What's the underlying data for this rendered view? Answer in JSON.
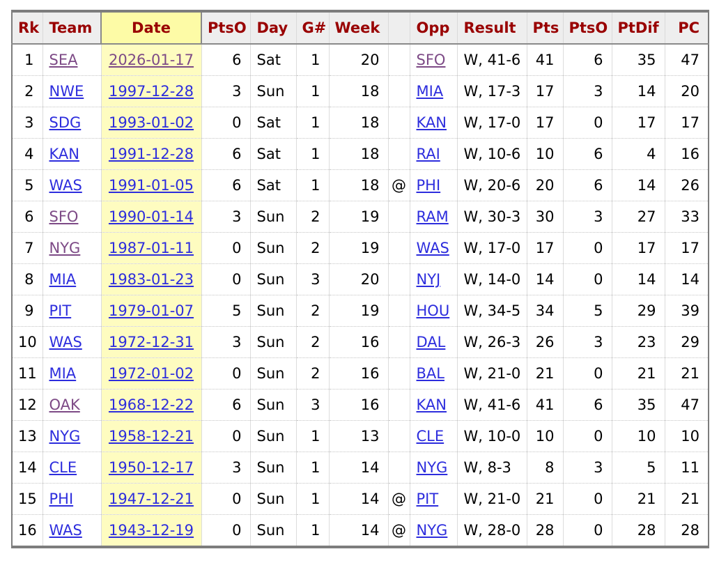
{
  "colors": {
    "header_text": "#990000",
    "header_background": "#eeeeee",
    "sort_highlight_header": "#fdfba6",
    "sort_highlight_cell": "#fefcc0",
    "link": "#2d2ddd",
    "visited_link": "#7d4a86",
    "table_border": "#7d7d7d"
  },
  "table": {
    "columns": [
      {
        "key": "rk",
        "label": "Rk"
      },
      {
        "key": "team",
        "label": "Team",
        "link": true
      },
      {
        "key": "date",
        "label": "Date",
        "link": true,
        "highlight": true
      },
      {
        "key": "ptso1",
        "label": "PtsO"
      },
      {
        "key": "day",
        "label": "Day"
      },
      {
        "key": "gnum",
        "label": "G#"
      },
      {
        "key": "week",
        "label": "Week"
      },
      {
        "key": "at",
        "label": ""
      },
      {
        "key": "opp",
        "label": "Opp",
        "link": true
      },
      {
        "key": "result",
        "label": "Result"
      },
      {
        "key": "pts",
        "label": "Pts"
      },
      {
        "key": "ptso2",
        "label": "PtsO"
      },
      {
        "key": "ptdif",
        "label": "PtDif"
      },
      {
        "key": "pc",
        "label": "PC"
      }
    ],
    "rows": [
      {
        "rk": "1",
        "team": "SEA",
        "team_visited": true,
        "date": "2026-01-17",
        "date_visited": true,
        "ptso1": "6",
        "day": "Sat",
        "gnum": "1",
        "week": "20",
        "at": "",
        "opp": "SFO",
        "opp_visited": true,
        "result": "W, 41-6",
        "pts": "41",
        "ptso2": "6",
        "ptdif": "35",
        "pc": "47"
      },
      {
        "rk": "2",
        "team": "NWE",
        "team_visited": false,
        "date": "1997-12-28",
        "date_visited": false,
        "ptso1": "3",
        "day": "Sun",
        "gnum": "1",
        "week": "18",
        "at": "",
        "opp": "MIA",
        "opp_visited": false,
        "result": "W, 17-3",
        "pts": "17",
        "ptso2": "3",
        "ptdif": "14",
        "pc": "20"
      },
      {
        "rk": "3",
        "team": "SDG",
        "team_visited": false,
        "date": "1993-01-02",
        "date_visited": false,
        "ptso1": "0",
        "day": "Sat",
        "gnum": "1",
        "week": "18",
        "at": "",
        "opp": "KAN",
        "opp_visited": false,
        "result": "W, 17-0",
        "pts": "17",
        "ptso2": "0",
        "ptdif": "17",
        "pc": "17"
      },
      {
        "rk": "4",
        "team": "KAN",
        "team_visited": false,
        "date": "1991-12-28",
        "date_visited": false,
        "ptso1": "6",
        "day": "Sat",
        "gnum": "1",
        "week": "18",
        "at": "",
        "opp": "RAI",
        "opp_visited": false,
        "result": "W, 10-6",
        "pts": "10",
        "ptso2": "6",
        "ptdif": "4",
        "pc": "16"
      },
      {
        "rk": "5",
        "team": "WAS",
        "team_visited": false,
        "date": "1991-01-05",
        "date_visited": false,
        "ptso1": "6",
        "day": "Sat",
        "gnum": "1",
        "week": "18",
        "at": "@",
        "opp": "PHI",
        "opp_visited": false,
        "result": "W, 20-6",
        "pts": "20",
        "ptso2": "6",
        "ptdif": "14",
        "pc": "26"
      },
      {
        "rk": "6",
        "team": "SFO",
        "team_visited": true,
        "date": "1990-01-14",
        "date_visited": false,
        "ptso1": "3",
        "day": "Sun",
        "gnum": "2",
        "week": "19",
        "at": "",
        "opp": "RAM",
        "opp_visited": false,
        "result": "W, 30-3",
        "pts": "30",
        "ptso2": "3",
        "ptdif": "27",
        "pc": "33"
      },
      {
        "rk": "7",
        "team": "NYG",
        "team_visited": true,
        "date": "1987-01-11",
        "date_visited": false,
        "ptso1": "0",
        "day": "Sun",
        "gnum": "2",
        "week": "19",
        "at": "",
        "opp": "WAS",
        "opp_visited": false,
        "result": "W, 17-0",
        "pts": "17",
        "ptso2": "0",
        "ptdif": "17",
        "pc": "17"
      },
      {
        "rk": "8",
        "team": "MIA",
        "team_visited": false,
        "date": "1983-01-23",
        "date_visited": false,
        "ptso1": "0",
        "day": "Sun",
        "gnum": "3",
        "week": "20",
        "at": "",
        "opp": "NYJ",
        "opp_visited": false,
        "result": "W, 14-0",
        "pts": "14",
        "ptso2": "0",
        "ptdif": "14",
        "pc": "14"
      },
      {
        "rk": "9",
        "team": "PIT",
        "team_visited": false,
        "date": "1979-01-07",
        "date_visited": false,
        "ptso1": "5",
        "day": "Sun",
        "gnum": "2",
        "week": "19",
        "at": "",
        "opp": "HOU",
        "opp_visited": false,
        "result": "W, 34-5",
        "pts": "34",
        "ptso2": "5",
        "ptdif": "29",
        "pc": "39"
      },
      {
        "rk": "10",
        "team": "WAS",
        "team_visited": false,
        "date": "1972-12-31",
        "date_visited": false,
        "ptso1": "3",
        "day": "Sun",
        "gnum": "2",
        "week": "16",
        "at": "",
        "opp": "DAL",
        "opp_visited": false,
        "result": "W, 26-3",
        "pts": "26",
        "ptso2": "3",
        "ptdif": "23",
        "pc": "29"
      },
      {
        "rk": "11",
        "team": "MIA",
        "team_visited": false,
        "date": "1972-01-02",
        "date_visited": false,
        "ptso1": "0",
        "day": "Sun",
        "gnum": "2",
        "week": "16",
        "at": "",
        "opp": "BAL",
        "opp_visited": false,
        "result": "W, 21-0",
        "pts": "21",
        "ptso2": "0",
        "ptdif": "21",
        "pc": "21"
      },
      {
        "rk": "12",
        "team": "OAK",
        "team_visited": true,
        "date": "1968-12-22",
        "date_visited": false,
        "ptso1": "6",
        "day": "Sun",
        "gnum": "3",
        "week": "16",
        "at": "",
        "opp": "KAN",
        "opp_visited": false,
        "result": "W, 41-6",
        "pts": "41",
        "ptso2": "6",
        "ptdif": "35",
        "pc": "47"
      },
      {
        "rk": "13",
        "team": "NYG",
        "team_visited": false,
        "date": "1958-12-21",
        "date_visited": false,
        "ptso1": "0",
        "day": "Sun",
        "gnum": "1",
        "week": "13",
        "at": "",
        "opp": "CLE",
        "opp_visited": false,
        "result": "W, 10-0",
        "pts": "10",
        "ptso2": "0",
        "ptdif": "10",
        "pc": "10"
      },
      {
        "rk": "14",
        "team": "CLE",
        "team_visited": false,
        "date": "1950-12-17",
        "date_visited": false,
        "ptso1": "3",
        "day": "Sun",
        "gnum": "1",
        "week": "14",
        "at": "",
        "opp": "NYG",
        "opp_visited": false,
        "result": "W, 8-3",
        "pts": "8",
        "ptso2": "3",
        "ptdif": "5",
        "pc": "11"
      },
      {
        "rk": "15",
        "team": "PHI",
        "team_visited": false,
        "date": "1947-12-21",
        "date_visited": false,
        "ptso1": "0",
        "day": "Sun",
        "gnum": "1",
        "week": "14",
        "at": "@",
        "opp": "PIT",
        "opp_visited": false,
        "result": "W, 21-0",
        "pts": "21",
        "ptso2": "0",
        "ptdif": "21",
        "pc": "21"
      },
      {
        "rk": "16",
        "team": "WAS",
        "team_visited": false,
        "date": "1943-12-19",
        "date_visited": false,
        "ptso1": "0",
        "day": "Sun",
        "gnum": "1",
        "week": "14",
        "at": "@",
        "opp": "NYG",
        "opp_visited": false,
        "result": "W, 28-0",
        "pts": "28",
        "ptso2": "0",
        "ptdif": "28",
        "pc": "28"
      }
    ]
  }
}
